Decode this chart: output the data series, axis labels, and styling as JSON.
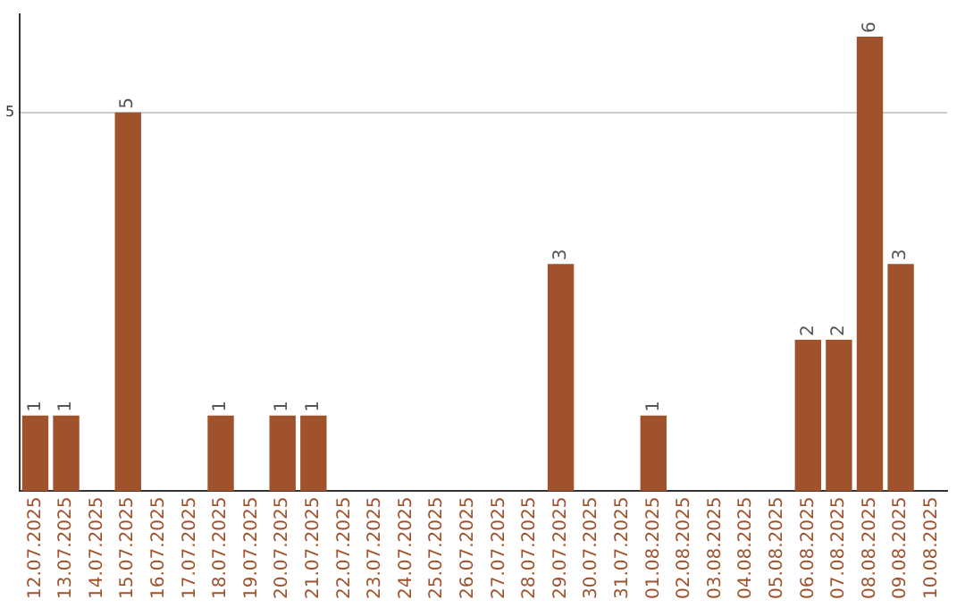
{
  "chart_data": {
    "type": "bar",
    "categories": [
      "12.07.2025",
      "13.07.2025",
      "14.07.2025",
      "15.07.2025",
      "16.07.2025",
      "17.07.2025",
      "18.07.2025",
      "19.07.2025",
      "20.07.2025",
      "21.07.2025",
      "22.07.2025",
      "23.07.2025",
      "24.07.2025",
      "25.07.2025",
      "26.07.2025",
      "27.07.2025",
      "28.07.2025",
      "29.07.2025",
      "30.07.2025",
      "31.07.2025",
      "01.08.2025",
      "02.08.2025",
      "03.08.2025",
      "04.08.2025",
      "05.08.2025",
      "06.08.2025",
      "07.08.2025",
      "08.08.2025",
      "09.08.2025",
      "10.08.2025"
    ],
    "values": [
      1,
      1,
      0,
      5,
      0,
      0,
      1,
      0,
      1,
      1,
      0,
      0,
      0,
      0,
      0,
      0,
      0,
      3,
      0,
      0,
      1,
      0,
      0,
      0,
      0,
      2,
      2,
      6,
      3,
      0
    ],
    "value_labels": [
      "1",
      "1",
      null,
      "5",
      null,
      null,
      "1",
      null,
      "1",
      "1",
      null,
      null,
      null,
      null,
      null,
      null,
      null,
      "3",
      null,
      null,
      "1",
      null,
      null,
      null,
      null,
      "2",
      "2",
      "6",
      "3",
      null
    ],
    "color": "#a0522d",
    "ylim": [
      0,
      6.3
    ],
    "yticks": [
      5
    ],
    "grid": "y",
    "legend": false
  }
}
